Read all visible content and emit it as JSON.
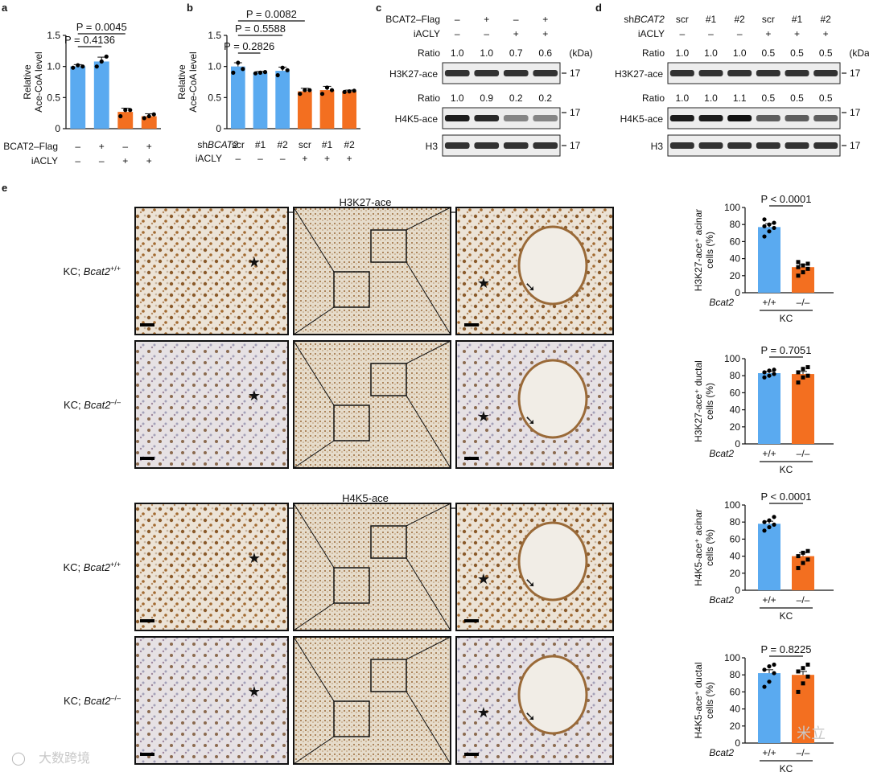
{
  "figure": {
    "panel_a": {
      "letter": "a",
      "chart_data": {
        "type": "bar",
        "ylabel": "Relative Ace-CoA level",
        "ylim": [
          0,
          1.5
        ],
        "yticks": [
          "0",
          "0.5",
          "1.0",
          "1.5"
        ],
        "values": [
          1.0,
          1.08,
          0.27,
          0.2
        ],
        "errors": [
          0.03,
          0.07,
          0.06,
          0.04
        ],
        "points": [
          [
            0.98,
            1.02,
            1.0
          ],
          [
            1.0,
            1.08,
            1.16
          ],
          [
            0.2,
            0.3,
            0.3
          ],
          [
            0.17,
            0.2,
            0.23
          ]
        ],
        "colors": [
          "#5aaaf0",
          "#5aaaf0",
          "#f36f20",
          "#f36f20"
        ],
        "row_labels": [
          "BCAT2–Flag",
          "iACLY"
        ],
        "row_values": [
          [
            "–",
            "+",
            "–",
            "+"
          ],
          [
            "–",
            "–",
            "+",
            "+"
          ]
        ],
        "pvalues": [
          {
            "text": "P = 0.0045",
            "from": 0,
            "to": 2
          },
          {
            "text": "P = 0.4136",
            "from": 0,
            "to": 1
          }
        ]
      }
    },
    "panel_b": {
      "letter": "b",
      "chart_data": {
        "type": "bar",
        "ylabel": "Relative Ace-CoA level",
        "ylim": [
          0,
          1.5
        ],
        "yticks": [
          "0",
          "0.5",
          "1.0",
          "1.5"
        ],
        "values": [
          1.0,
          0.9,
          0.93,
          0.6,
          0.62,
          0.6
        ],
        "errors": [
          0.06,
          0.02,
          0.06,
          0.05,
          0.06,
          0.02
        ],
        "points": [
          [
            0.9,
            1.06,
            0.96
          ],
          [
            0.89,
            0.9,
            0.91
          ],
          [
            0.86,
            0.98,
            0.94
          ],
          [
            0.56,
            0.62,
            0.62
          ],
          [
            0.56,
            0.66,
            0.62
          ],
          [
            0.59,
            0.6,
            0.61
          ]
        ],
        "colors": [
          "#5aaaf0",
          "#5aaaf0",
          "#5aaaf0",
          "#f36f20",
          "#f36f20",
          "#f36f20"
        ],
        "row_labels": [
          "sh",
          "BCAT2",
          "iACLY"
        ],
        "row_values": [
          [
            "scr",
            "#1",
            "#2",
            "scr",
            "#1",
            "#2"
          ],
          [
            "–",
            "–",
            "–",
            "+",
            "+",
            "+"
          ]
        ],
        "pvalues": [
          {
            "text": "P = 0.0082",
            "from": 0,
            "to": 3
          },
          {
            "text": "P = 0.5588",
            "from": 0,
            "to": 2
          },
          {
            "text": "P = 0.2826",
            "from": 0,
            "to": 1
          }
        ]
      }
    },
    "panel_c": {
      "letter": "c",
      "rows": [
        {
          "label": "BCAT2–Flag",
          "vals": [
            "–",
            "+",
            "–",
            "+"
          ]
        },
        {
          "label": "iACLY",
          "vals": [
            "–",
            "–",
            "+",
            "+"
          ]
        }
      ],
      "ratio_label": "Ratio",
      "kda": "(kDa)",
      "ratio1": [
        "1.0",
        "1.0",
        "0.7",
        "0.6"
      ],
      "ratio2": [
        "1.0",
        "0.9",
        "0.2",
        "0.2"
      ],
      "blots": [
        "H3K27-ace",
        "H4K5-ace",
        "H3"
      ],
      "marker": "17"
    },
    "panel_d": {
      "letter": "d",
      "rows": [
        {
          "label": "sh",
          "label_italic": "BCAT2",
          "vals": [
            "scr",
            "#1",
            "#2",
            "scr",
            "#1",
            "#2"
          ]
        },
        {
          "label": "iACLY",
          "vals": [
            "–",
            "–",
            "–",
            "+",
            "+",
            "+"
          ]
        }
      ],
      "ratio_label": "Ratio",
      "kda": "(kDa)",
      "ratio1": [
        "1.0",
        "1.0",
        "1.0",
        "0.5",
        "0.5",
        "0.5"
      ],
      "ratio2": [
        "1.0",
        "1.0",
        "1.1",
        "0.5",
        "0.5",
        "0.5"
      ],
      "blots": [
        "H3K27-ace",
        "H4K5-ace",
        "H3"
      ],
      "marker": "17"
    },
    "panel_e": {
      "letter": "e",
      "groups": [
        {
          "title": "H3K27-ace",
          "rows": [
            {
              "label": "KC; ",
              "gene": "Bcat2",
              "sup": "+/+"
            },
            {
              "label": "KC; ",
              "gene": "Bcat2",
              "sup": "–/–"
            }
          ]
        },
        {
          "title": "H4K5-ace",
          "rows": [
            {
              "label": "KC; ",
              "gene": "Bcat2",
              "sup": "+/+"
            },
            {
              "label": "KC; ",
              "gene": "Bcat2",
              "sup": "–/–"
            }
          ]
        }
      ],
      "charts": [
        {
          "ylabel": "H3K27-ace⁺ acinar cells (%)",
          "pvalue": "P < 0.0001",
          "values": [
            77,
            30
          ],
          "errors": [
            4,
            3
          ],
          "points": [
            [
              66,
              72,
              76,
              78,
              80,
              82,
              86
            ],
            [
              20,
              24,
              28,
              30,
              32,
              34,
              36
            ]
          ]
        },
        {
          "ylabel": "H3K27-ace⁺ ductal cells (%)",
          "pvalue": "P = 0.7051",
          "values": [
            83,
            82
          ],
          "errors": [
            2,
            3
          ],
          "points": [
            [
              78,
              80,
              82,
              84,
              86,
              87
            ],
            [
              72,
              78,
              80,
              84,
              88,
              90
            ]
          ]
        },
        {
          "ylabel": "H4K5-ace⁺ acinar cells (%)",
          "pvalue": "P < 0.0001",
          "values": [
            78,
            40
          ],
          "errors": [
            3,
            4
          ],
          "points": [
            [
              70,
              74,
              77,
              80,
              82,
              86
            ],
            [
              26,
              32,
              36,
              40,
              44,
              46
            ]
          ]
        },
        {
          "ylabel": "H4K5-ace⁺ ductal cells (%)",
          "pvalue": "P = 0.8225",
          "values": [
            82,
            80
          ],
          "errors": [
            4,
            4
          ],
          "points": [
            [
              66,
              72,
              82,
              86,
              90,
              92
            ],
            [
              60,
              70,
              78,
              84,
              88,
              92
            ]
          ]
        }
      ],
      "ymax": 100,
      "yticks": [
        "0",
        "20",
        "40",
        "60",
        "80",
        "100"
      ],
      "group_label": "Bcat2",
      "genotypes": [
        "+/+",
        "–/–"
      ],
      "kc": "KC"
    },
    "watermarks": [
      "大数跨境",
      "米立"
    ]
  }
}
